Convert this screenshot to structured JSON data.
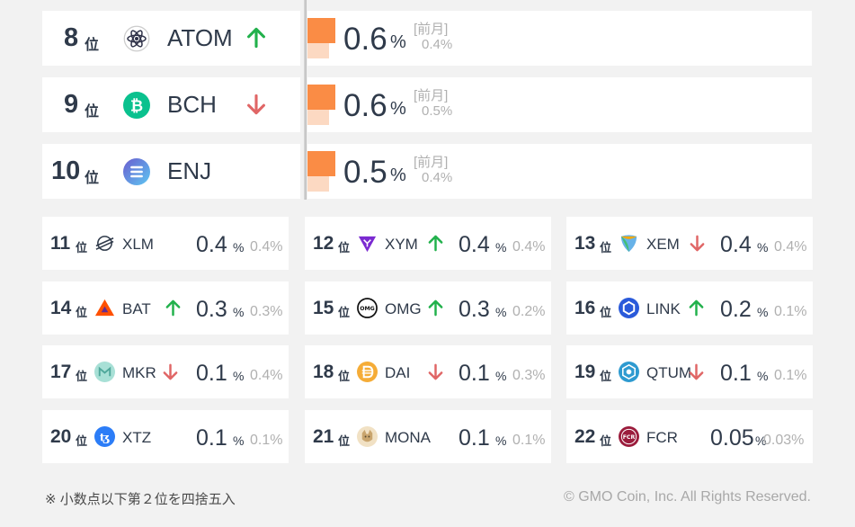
{
  "top_rows": [
    {
      "rank": "8",
      "unit": "位",
      "symbol": "ATOM",
      "trend": "up",
      "value": "0.6",
      "percent": "%",
      "prev_label": "[前月]",
      "prev": "0.4%"
    },
    {
      "rank": "9",
      "unit": "位",
      "symbol": "BCH",
      "trend": "down",
      "value": "0.6",
      "percent": "%",
      "prev_label": "[前月]",
      "prev": "0.5%"
    },
    {
      "rank": "10",
      "unit": "位",
      "symbol": "ENJ",
      "trend": "none",
      "value": "0.5",
      "percent": "%",
      "prev_label": "[前月]",
      "prev": "0.4%"
    }
  ],
  "grid_rows": [
    {
      "rank": "11",
      "unit": "位",
      "symbol": "XLM",
      "trend": "none",
      "value": "0.4",
      "percent": "%",
      "prev": "0.4%"
    },
    {
      "rank": "12",
      "unit": "位",
      "symbol": "XYM",
      "trend": "up",
      "value": "0.4",
      "percent": "%",
      "prev": "0.4%"
    },
    {
      "rank": "13",
      "unit": "位",
      "symbol": "XEM",
      "trend": "down",
      "value": "0.4",
      "percent": "%",
      "prev": "0.4%"
    },
    {
      "rank": "14",
      "unit": "位",
      "symbol": "BAT",
      "trend": "up",
      "value": "0.3",
      "percent": "%",
      "prev": "0.3%"
    },
    {
      "rank": "15",
      "unit": "位",
      "symbol": "OMG",
      "trend": "up",
      "value": "0.3",
      "percent": "%",
      "prev": "0.2%"
    },
    {
      "rank": "16",
      "unit": "位",
      "symbol": "LINK",
      "trend": "up",
      "value": "0.2",
      "percent": "%",
      "prev": "0.1%"
    },
    {
      "rank": "17",
      "unit": "位",
      "symbol": "MKR",
      "trend": "down",
      "value": "0.1",
      "percent": "%",
      "prev": "0.4%"
    },
    {
      "rank": "18",
      "unit": "位",
      "symbol": "DAI",
      "trend": "down",
      "value": "0.1",
      "percent": "%",
      "prev": "0.3%"
    },
    {
      "rank": "19",
      "unit": "位",
      "symbol": "QTUM",
      "trend": "down",
      "value": "0.1",
      "percent": "%",
      "prev": "0.1%"
    },
    {
      "rank": "20",
      "unit": "位",
      "symbol": "XTZ",
      "trend": "none",
      "value": "0.1",
      "percent": "%",
      "prev": "0.1%"
    },
    {
      "rank": "21",
      "unit": "位",
      "symbol": "MONA",
      "trend": "none",
      "value": "0.1",
      "percent": "%",
      "prev": "0.1%"
    },
    {
      "rank": "22",
      "unit": "位",
      "symbol": "FCR",
      "trend": "none",
      "value": "0.05",
      "percent": "%",
      "prev": "0.03%"
    }
  ],
  "icons": {
    "ATOM": {
      "name": "atom-icon",
      "color": "#2e3148"
    },
    "BCH": {
      "name": "bitcoin-cash-icon",
      "color": "#0ac18e"
    },
    "ENJ": {
      "name": "enjin-icon",
      "color": "#7866d5"
    },
    "XLM": {
      "name": "stellar-icon",
      "color": "#2f3a4a"
    },
    "XYM": {
      "name": "symbol-icon",
      "color": "#7b2ad1"
    },
    "XEM": {
      "name": "nem-icon",
      "color": "#67b2e8"
    },
    "BAT": {
      "name": "bat-icon",
      "color": "#ff5000"
    },
    "OMG": {
      "name": "omg-icon",
      "color": "#101010"
    },
    "LINK": {
      "name": "chainlink-icon",
      "color": "#2a5ada"
    },
    "MKR": {
      "name": "maker-icon",
      "color": "#4fa89b"
    },
    "DAI": {
      "name": "dai-icon",
      "color": "#f5ac37"
    },
    "QTUM": {
      "name": "qtum-icon",
      "color": "#2e9ad0"
    },
    "XTZ": {
      "name": "tezos-icon",
      "color": "#2c7df7"
    },
    "MONA": {
      "name": "monacoin-icon",
      "color": "#c9a56e"
    },
    "FCR": {
      "name": "fcr-icon",
      "color": "#9b1c3c"
    }
  },
  "colors": {
    "up": "#22b14c",
    "down": "#e06666",
    "bar_primary": "#fa8c45",
    "bar_secondary": "#fcd9c2"
  },
  "footer": {
    "note": "※ 小数点以下第２位を四捨五入",
    "copyright": "© GMO Coin, Inc. All Rights Reserved."
  }
}
